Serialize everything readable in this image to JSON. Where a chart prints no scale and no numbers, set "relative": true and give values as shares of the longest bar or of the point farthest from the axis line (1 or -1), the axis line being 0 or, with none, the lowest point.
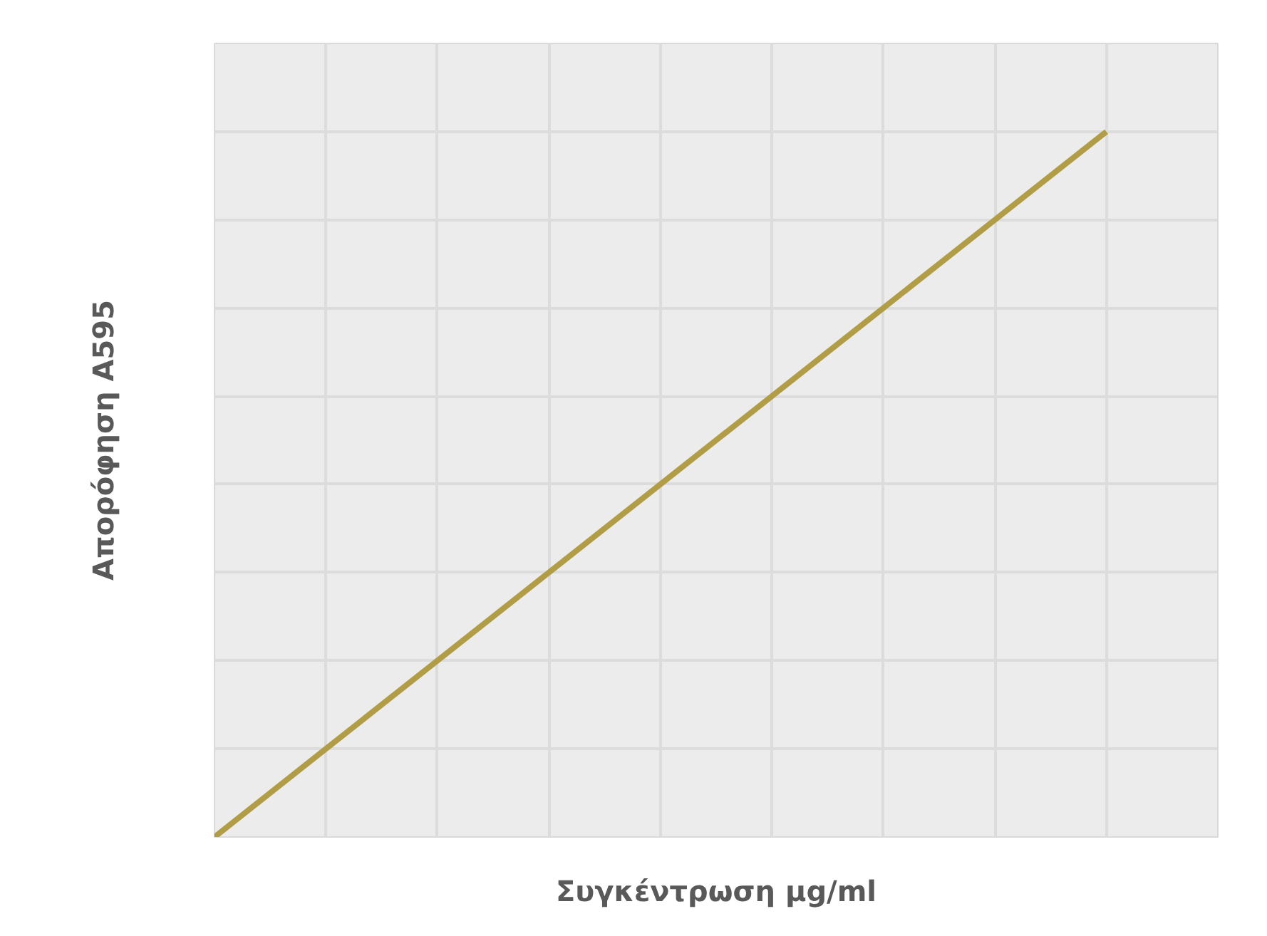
{
  "chart_data": {
    "type": "line",
    "relative": true,
    "xlabel": "Συγκέντρωση μg/ml",
    "ylabel": "Απορόφηση A595",
    "categories": [
      null,
      null,
      null,
      null,
      null,
      null,
      null,
      null,
      null,
      null
    ],
    "series": [
      {
        "color": "#b29d47",
        "values": [
          0,
          0.125,
          0.25,
          0.375,
          0.5,
          0.625,
          0.75,
          0.875,
          1,
          null
        ]
      }
    ],
    "grid": true,
    "tick_labels": false
  }
}
